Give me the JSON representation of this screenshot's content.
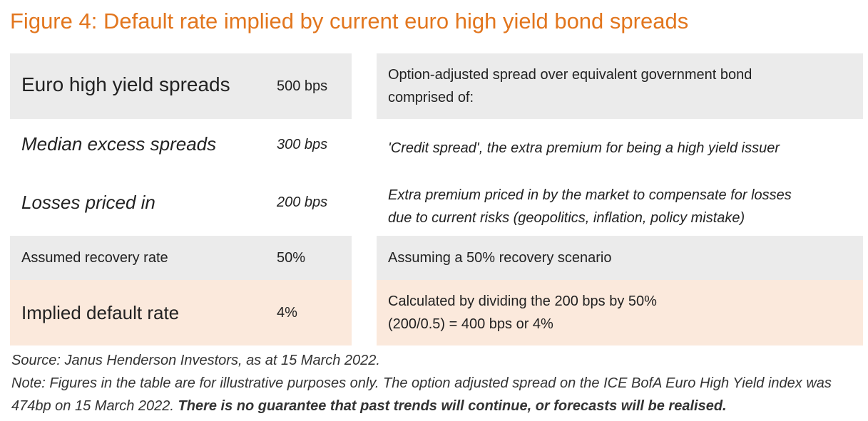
{
  "header": {
    "title": "Figure 4: Default rate implied by current euro high yield bond spreads"
  },
  "table": {
    "rows": [
      {
        "label": "Euro high yield spreads",
        "value": "500 bps",
        "description": [
          "Option-adjusted spread over equivalent government bond",
          "comprised of:"
        ]
      },
      {
        "label": "Median excess spreads",
        "value": "300 bps",
        "description": [
          "'Credit spread', the extra premium for being a high yield issuer"
        ]
      },
      {
        "label": "Losses priced in",
        "value": "200 bps",
        "description": [
          "Extra premium priced in by the market to compensate for losses",
          "due to current risks (geopolitics, inflation, policy mistake)"
        ]
      },
      {
        "label": "Assumed recovery rate",
        "value": "50%",
        "description": [
          "Assuming a 50% recovery scenario"
        ]
      },
      {
        "label": "Implied default rate",
        "value": "4%",
        "description": [
          "Calculated by dividing the 200 bps by 50%",
          "(200/0.5) = 400 bps or 4%"
        ]
      }
    ]
  },
  "footer": {
    "source": "Source: Janus Henderson Investors, as at 15 March 2022.",
    "note": "Note: Figures in the table are for illustrative purposes only. The option adjusted spread on the ICE BofA Euro High Yield index was 474bp on 15 March 2022.",
    "disclaimer": "There is no guarantee that past trends will continue, or forecasts will be realised."
  }
}
